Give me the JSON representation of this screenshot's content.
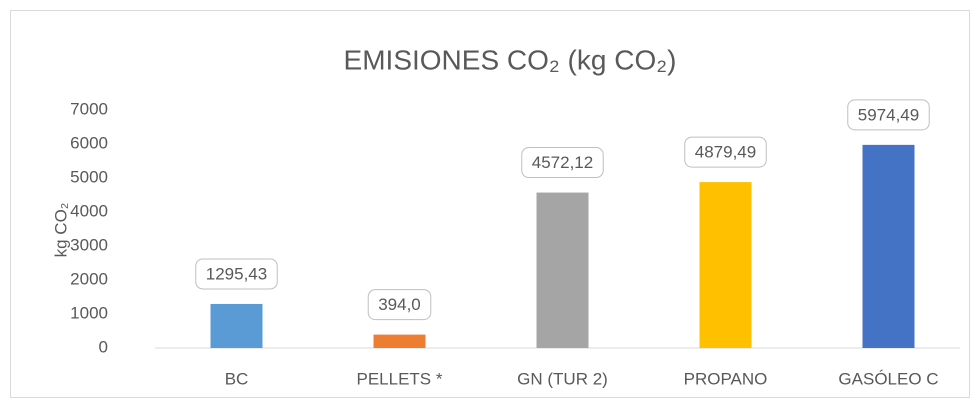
{
  "chart_data": {
    "type": "bar",
    "title": "EMISIONES CO₂ (kg CO₂)",
    "y_label": "kg CO₂",
    "categories": [
      "BC",
      "PELLETS *",
      "GN (TUR 2)",
      "PROPANO",
      "GASÓLEO C"
    ],
    "values": [
      1295.43,
      394.0,
      4572.12,
      4879.49,
      5974.49
    ],
    "value_labels": [
      "1295,43",
      "394,0",
      "4572,12",
      "4879,49",
      "5974,49"
    ],
    "colors": [
      "#5b9bd5",
      "#ed7d31",
      "#a5a5a5",
      "#ffc000",
      "#4472c4"
    ],
    "ylim": [
      0,
      7000
    ],
    "yticks": [
      0,
      1000,
      2000,
      3000,
      4000,
      5000,
      6000,
      7000
    ],
    "grid": false
  }
}
